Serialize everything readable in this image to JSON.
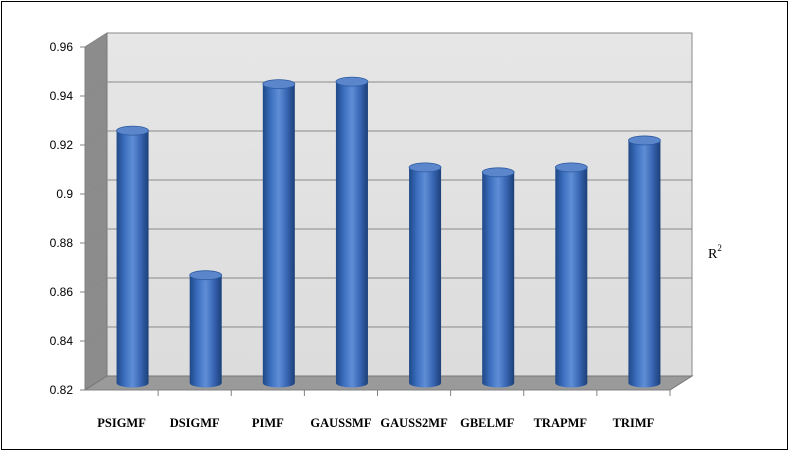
{
  "chart_data": {
    "type": "bar",
    "style": "3d-cylinder",
    "categories": [
      "PSIGMF",
      "DSIGMF",
      "PIMF",
      "GAUSSMF",
      "GAUSS2MF",
      "GBELMF",
      "TRAPMF",
      "TRIMF"
    ],
    "series": [
      {
        "name": "R",
        "superscript": "2",
        "color": "#3f73c4",
        "values": [
          0.923,
          0.864,
          0.942,
          0.943,
          0.908,
          0.906,
          0.908,
          0.919
        ]
      }
    ],
    "yticks": [
      "0.82",
      "0.84",
      "0.86",
      "0.88",
      "0.9",
      "0.92",
      "0.94",
      "0.96"
    ],
    "ylim": [
      0.82,
      0.96
    ],
    "grid": true,
    "legend_position": "right",
    "wall_color": "#e2e2e2",
    "side_wall_color": "#8c8c8c",
    "floor_color": "#9a9a9a"
  }
}
